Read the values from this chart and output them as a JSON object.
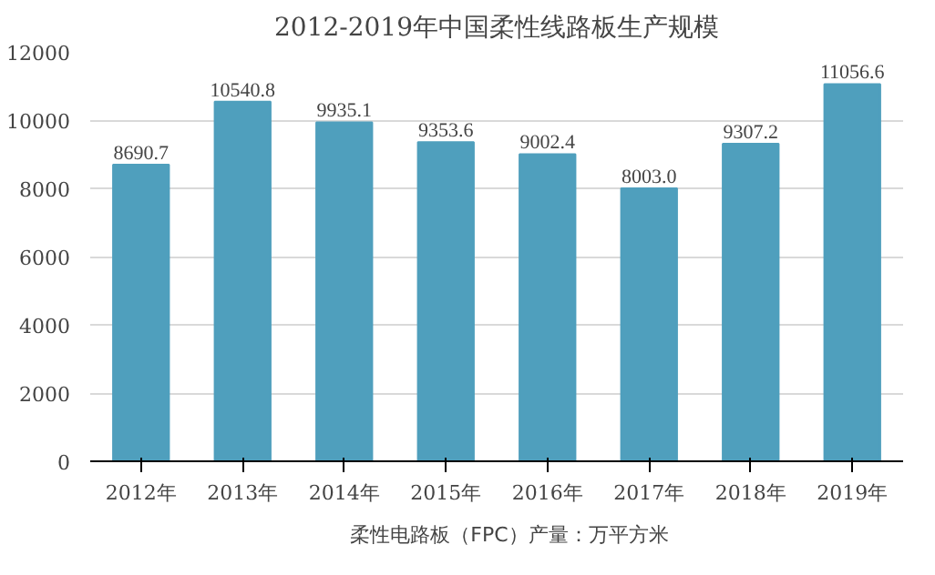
{
  "chart_data": {
    "type": "bar",
    "title": "2012-2019年中国柔性线路板生产规模",
    "categories": [
      "2012年",
      "2013年",
      "2014年",
      "2015年",
      "2016年",
      "2017年",
      "2018年",
      "2019年"
    ],
    "series": [
      {
        "name": "柔性电路板（FPC）产量：万平方米",
        "color": "#4f9fbd",
        "values": [
          8690.7,
          10540.8,
          9935.1,
          9353.6,
          9002.4,
          8003.0,
          9307.2,
          11056.6
        ]
      }
    ],
    "ylim": [
      0,
      12000
    ],
    "yticks": [
      0,
      2000,
      4000,
      6000,
      8000,
      10000,
      12000
    ],
    "grid": "y",
    "legend": "bottom",
    "value_labels": [
      "8690.7",
      "10540.8",
      "9935.1",
      "9353.6",
      "9002.4",
      "8003.0",
      "9307.2",
      "11056.6"
    ]
  }
}
